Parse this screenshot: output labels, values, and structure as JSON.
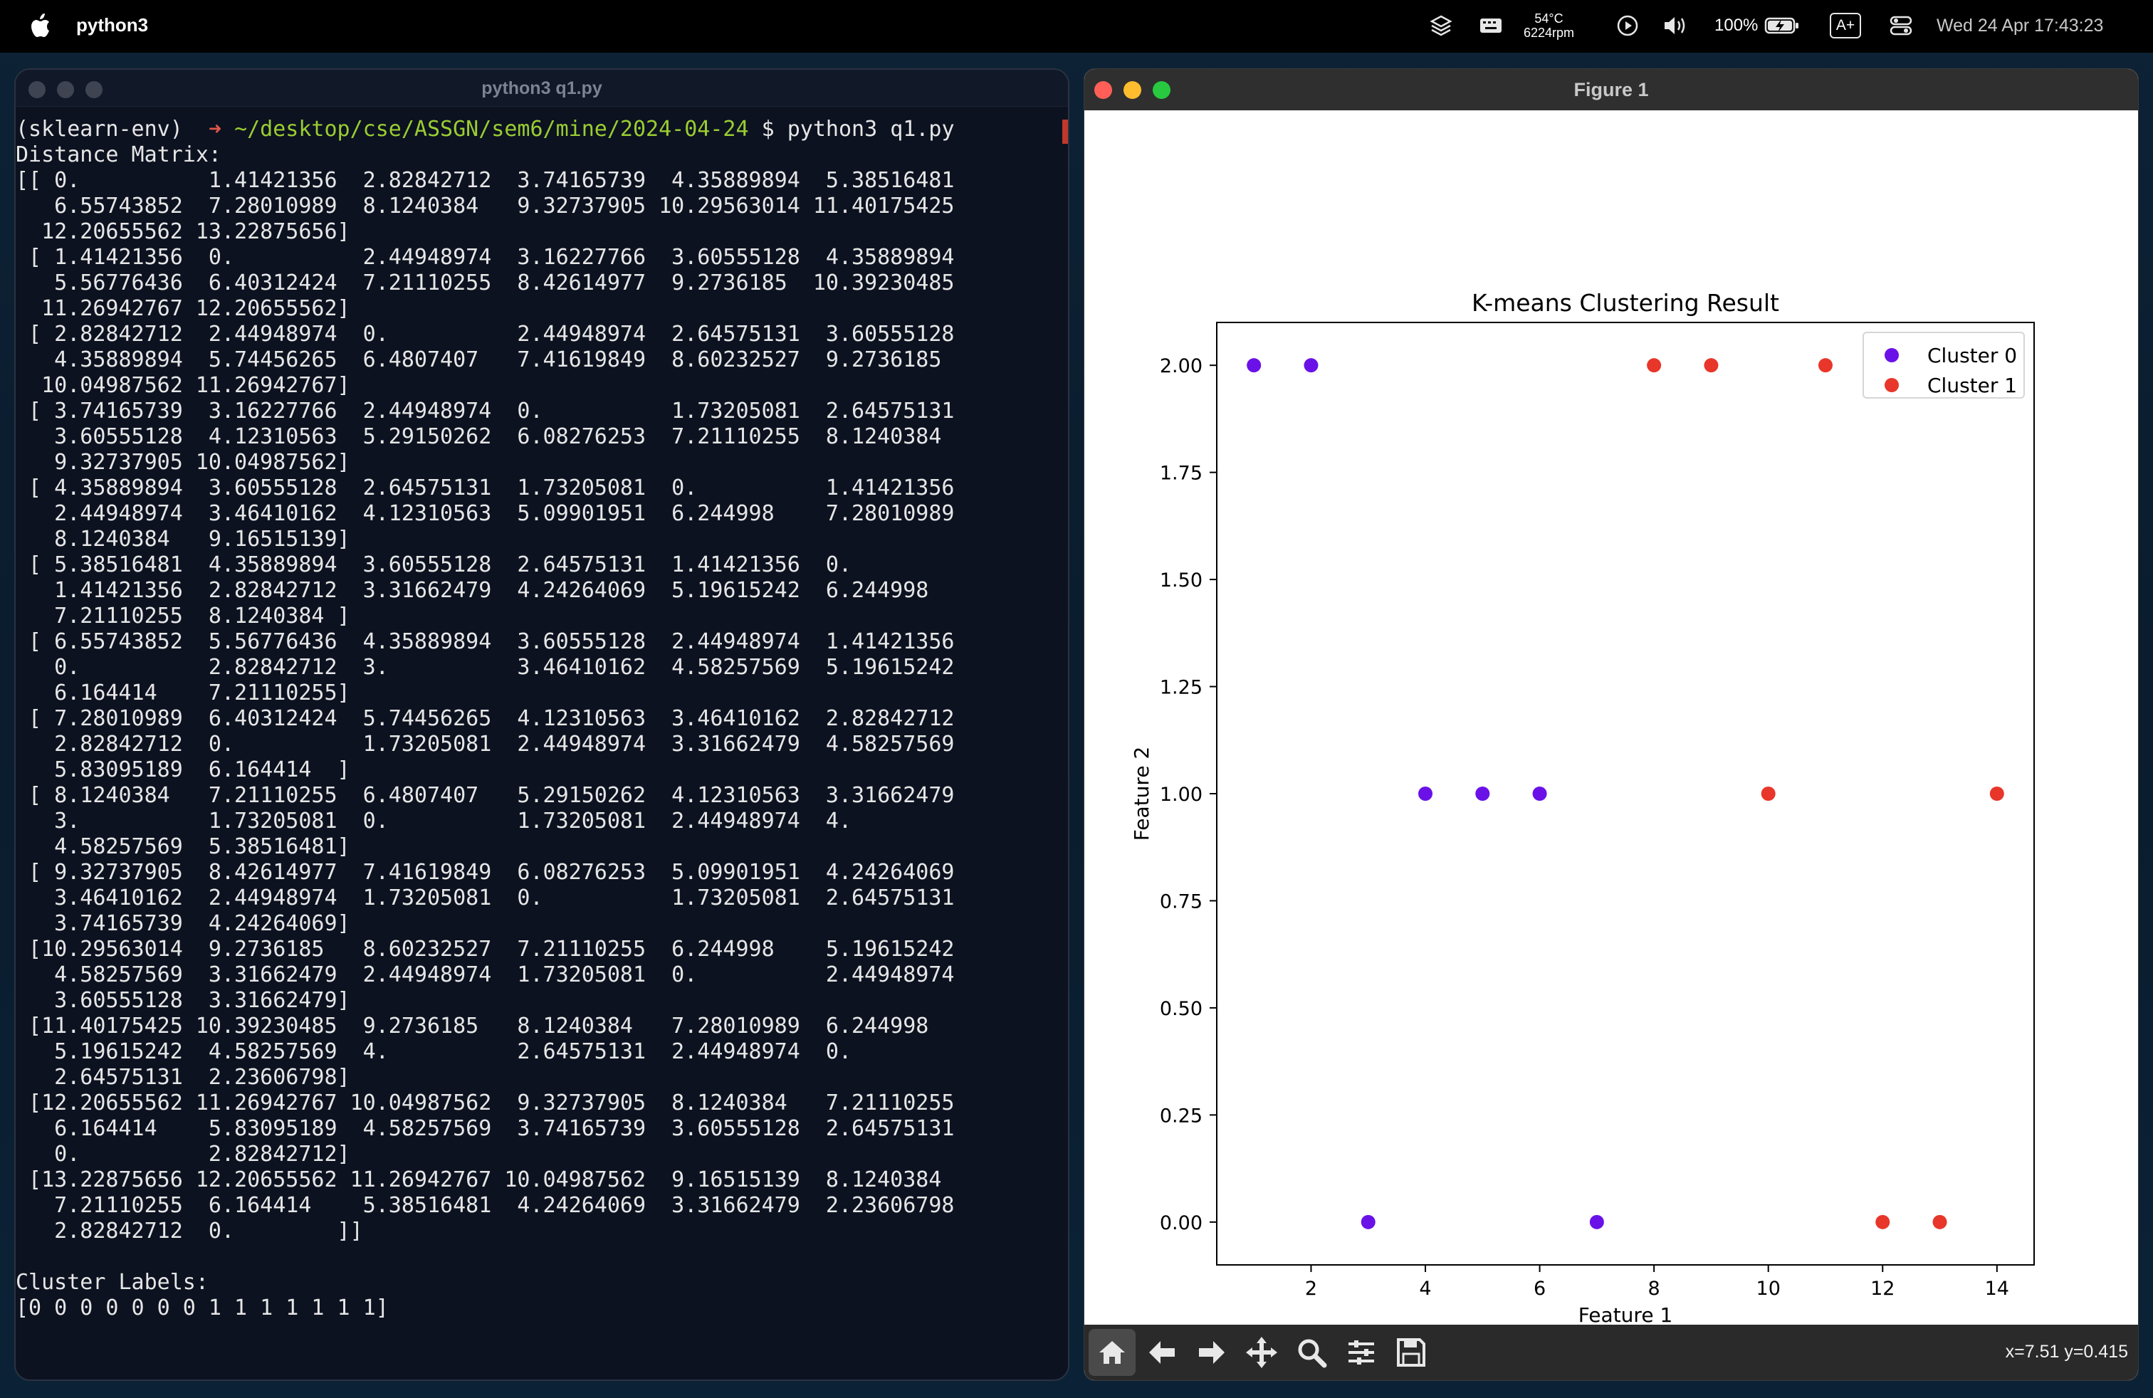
{
  "menubar": {
    "app_name": "python3",
    "temp": "54°C",
    "rpm": "6224rpm",
    "battery": "100%",
    "text_size": "A+",
    "clock": "Wed 24 Apr  17:43:23"
  },
  "terminal": {
    "title": "python3 q1.py",
    "prompt_env": "(sklearn-env)",
    "prompt_arrow": "➜",
    "prompt_path": "~/desktop/cse/ASSGN/sem6/mine/2024-04-24",
    "prompt_command": "$ python3 q1.py",
    "output_lines": [
      "Distance Matrix:",
      "[[ 0.          1.41421356  2.82842712  3.74165739  4.35889894  5.38516481",
      "   6.55743852  7.28010989  8.1240384   9.32737905 10.29563014 11.40175425",
      "  12.20655562 13.22875656]",
      " [ 1.41421356  0.          2.44948974  3.16227766  3.60555128  4.35889894",
      "   5.56776436  6.40312424  7.21110255  8.42614977  9.2736185  10.39230485",
      "  11.26942767 12.20655562]",
      " [ 2.82842712  2.44948974  0.          2.44948974  2.64575131  3.60555128",
      "   4.35889894  5.74456265  6.4807407   7.41619849  8.60232527  9.2736185",
      "  10.04987562 11.26942767]",
      " [ 3.74165739  3.16227766  2.44948974  0.          1.73205081  2.64575131",
      "   3.60555128  4.12310563  5.29150262  6.08276253  7.21110255  8.1240384",
      "   9.32737905 10.04987562]",
      " [ 4.35889894  3.60555128  2.64575131  1.73205081  0.          1.41421356",
      "   2.44948974  3.46410162  4.12310563  5.09901951  6.244998    7.28010989",
      "   8.1240384   9.16515139]",
      " [ 5.38516481  4.35889894  3.60555128  2.64575131  1.41421356  0.",
      "   1.41421356  2.82842712  3.31662479  4.24264069  5.19615242  6.244998",
      "   7.21110255  8.1240384 ]",
      " [ 6.55743852  5.56776436  4.35889894  3.60555128  2.44948974  1.41421356",
      "   0.          2.82842712  3.          3.46410162  4.58257569  5.19615242",
      "   6.164414    7.21110255]",
      " [ 7.28010989  6.40312424  5.74456265  4.12310563  3.46410162  2.82842712",
      "   2.82842712  0.          1.73205081  2.44948974  3.31662479  4.58257569",
      "   5.83095189  6.164414  ]",
      " [ 8.1240384   7.21110255  6.4807407   5.29150262  4.12310563  3.31662479",
      "   3.          1.73205081  0.          1.73205081  2.44948974  4.",
      "   4.58257569  5.38516481]",
      " [ 9.32737905  8.42614977  7.41619849  6.08276253  5.09901951  4.24264069",
      "   3.46410162  2.44948974  1.73205081  0.          1.73205081  2.64575131",
      "   3.74165739  4.24264069]",
      " [10.29563014  9.2736185   8.60232527  7.21110255  6.244998    5.19615242",
      "   4.58257569  3.31662479  2.44948974  1.73205081  0.          2.44948974",
      "   3.60555128  3.31662479]",
      " [11.40175425 10.39230485  9.2736185   8.1240384   7.28010989  6.244998",
      "   5.19615242  4.58257569  4.          2.64575131  2.44948974  0.",
      "   2.64575131  2.23606798]",
      " [12.20655562 11.26942767 10.04987562  9.32737905  8.1240384   7.21110255",
      "   6.164414    5.83095189  4.58257569  3.74165739  3.60555128  2.64575131",
      "   0.          2.82842712]",
      " [13.22875656 12.20655562 11.26942767 10.04987562  9.16515139  8.1240384",
      "   7.21110255  6.164414    5.38516481  4.24264069  3.31662479  2.23606798",
      "   2.82842712  0.        ]]",
      "",
      "Cluster Labels:",
      "[0 0 0 0 0 0 0 1 1 1 1 1 1 1]"
    ]
  },
  "figure": {
    "window_title": "Figure 1",
    "coords_readout": "x=7.51 y=0.415",
    "toolbar_icons": [
      "home-icon",
      "back-arrow-icon",
      "forward-arrow-icon",
      "pan-icon",
      "zoom-icon",
      "configure-subplots-icon",
      "save-icon"
    ]
  },
  "chart_data": {
    "type": "scatter",
    "title": "K-means Clustering Result",
    "xlabel": "Feature 1",
    "ylabel": "Feature 2",
    "xlim": [
      0.35,
      14.65
    ],
    "ylim": [
      -0.1,
      2.1
    ],
    "xticks": [
      2,
      4,
      6,
      8,
      10,
      12,
      14
    ],
    "yticks": [
      "0.00",
      "0.25",
      "0.50",
      "0.75",
      "1.00",
      "1.25",
      "1.50",
      "1.75",
      "2.00"
    ],
    "grid": false,
    "legend_position": "top-right",
    "series": [
      {
        "name": "Cluster 0",
        "color": "#6a11e8",
        "x": [
          1,
          2,
          3,
          4,
          5,
          6,
          7
        ],
        "y": [
          2,
          2,
          0,
          1,
          1,
          1,
          0
        ]
      },
      {
        "name": "Cluster 1",
        "color": "#e8362a",
        "x": [
          8,
          9,
          10,
          11,
          12,
          13,
          14
        ],
        "y": [
          2,
          2,
          1,
          2,
          0,
          0,
          1
        ]
      }
    ]
  }
}
